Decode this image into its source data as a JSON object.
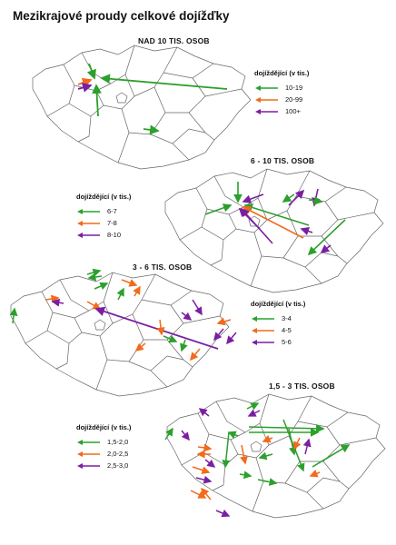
{
  "title": "Mezikrajové proudy celkové dojížďky",
  "colors": {
    "green": "#2ca02c",
    "orange": "#f26a1b",
    "purple": "#7b1fa2",
    "border": "#666666"
  },
  "maps": [
    {
      "heading": "NAD 10 TIS. OSOB",
      "legend": {
        "title": "dojíždějící  (v tis.)",
        "items": [
          {
            "label": "10-19",
            "color": "green"
          },
          {
            "label": "20-99",
            "color": "orange"
          },
          {
            "label": "100+",
            "color": "purple"
          }
        ]
      }
    },
    {
      "heading": "6 - 10 TIS. OSOB",
      "legend": {
        "title": "dojíždějící  (v tis.)",
        "items": [
          {
            "label": "6-7",
            "color": "green"
          },
          {
            "label": "7-8",
            "color": "orange"
          },
          {
            "label": "8-10",
            "color": "purple"
          }
        ]
      }
    },
    {
      "heading": "3 - 6 TIS. OSOB",
      "legend": {
        "title": "dojíždějící  (v tis.)",
        "items": [
          {
            "label": "3-4",
            "color": "green"
          },
          {
            "label": "4-5",
            "color": "orange"
          },
          {
            "label": "5-6",
            "color": "purple"
          }
        ]
      }
    },
    {
      "heading": "1,5 - 3 TIS. OSOB",
      "legend": {
        "title": "dojíždějící  (v tis.)",
        "items": [
          {
            "label": "1,5-2,0",
            "color": "green"
          },
          {
            "label": "2,0-2,5",
            "color": "orange"
          },
          {
            "label": "2,5-3,0",
            "color": "purple"
          }
        ]
      }
    }
  ]
}
